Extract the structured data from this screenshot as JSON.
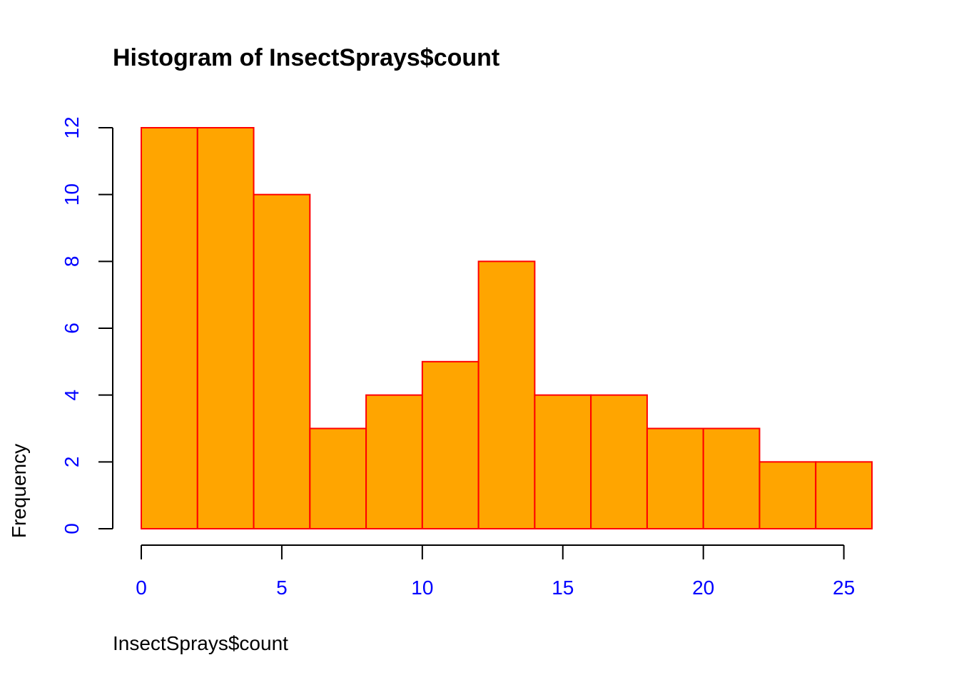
{
  "chart_data": {
    "type": "bar",
    "subtype": "histogram",
    "title": "Histogram of InsectSprays$count",
    "xlabel": "InsectSprays$count",
    "ylabel": "Frequency",
    "bins": [
      {
        "start": 0,
        "end": 2,
        "count": 12
      },
      {
        "start": 2,
        "end": 4,
        "count": 12
      },
      {
        "start": 4,
        "end": 6,
        "count": 10
      },
      {
        "start": 6,
        "end": 8,
        "count": 3
      },
      {
        "start": 8,
        "end": 10,
        "count": 4
      },
      {
        "start": 10,
        "end": 12,
        "count": 5
      },
      {
        "start": 12,
        "end": 14,
        "count": 8
      },
      {
        "start": 14,
        "end": 16,
        "count": 4
      },
      {
        "start": 16,
        "end": 18,
        "count": 4
      },
      {
        "start": 18,
        "end": 20,
        "count": 3
      },
      {
        "start": 20,
        "end": 22,
        "count": 3
      },
      {
        "start": 22,
        "end": 24,
        "count": 2
      },
      {
        "start": 24,
        "end": 26,
        "count": 2
      }
    ],
    "xlim": [
      0,
      26
    ],
    "ylim": [
      0,
      12
    ],
    "x_ticks": [
      "0",
      "5",
      "10",
      "15",
      "20",
      "25"
    ],
    "y_ticks": [
      "0",
      "2",
      "4",
      "6",
      "8",
      "10",
      "12"
    ],
    "grid": false,
    "colors": {
      "bar_fill": "#FFA500",
      "bar_border": "#FF0000",
      "tick_labels": "#0000FF",
      "axis": "#000000"
    }
  }
}
